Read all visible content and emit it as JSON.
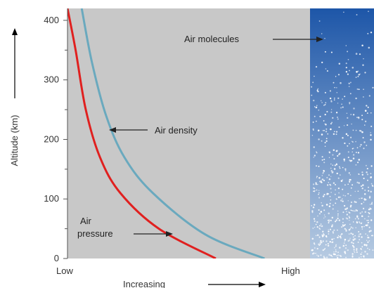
{
  "colors": {
    "plot_bg": "#c8c8c8",
    "pressure": "#e0201f",
    "density": "#6aa9be",
    "molecule_top": "#1d56a8",
    "molecule_bottom": "#b7cbe2",
    "axis": "#555555"
  },
  "chart_data": {
    "type": "line",
    "title": "",
    "xlabel": "Increasing",
    "ylabel": "Altitude (km)",
    "ylim": [
      0,
      420
    ],
    "y_ticks": [
      0,
      100,
      200,
      300,
      400
    ],
    "x_ticks": [
      "Low",
      "High"
    ],
    "grid": false,
    "series": [
      {
        "name": "Air pressure",
        "note": "x as fraction of Low→High span",
        "points": [
          [
            0.0,
            420
          ],
          [
            0.04,
            350
          ],
          [
            0.09,
            250
          ],
          [
            0.16,
            170
          ],
          [
            0.26,
            110
          ],
          [
            0.45,
            50
          ],
          [
            0.73,
            0
          ]
        ]
      },
      {
        "name": "Air density",
        "points": [
          [
            0.07,
            420
          ],
          [
            0.12,
            330
          ],
          [
            0.19,
            240
          ],
          [
            0.28,
            170
          ],
          [
            0.42,
            110
          ],
          [
            0.68,
            40
          ],
          [
            0.97,
            0
          ]
        ]
      }
    ],
    "annotations": [
      {
        "text": "Air molecules",
        "target": "molecule-panel"
      },
      {
        "text": "Air density",
        "target": "density-curve"
      },
      {
        "text": "Air\npressure",
        "lines": [
          "Air",
          "pressure"
        ],
        "target": "pressure-curve"
      }
    ]
  }
}
